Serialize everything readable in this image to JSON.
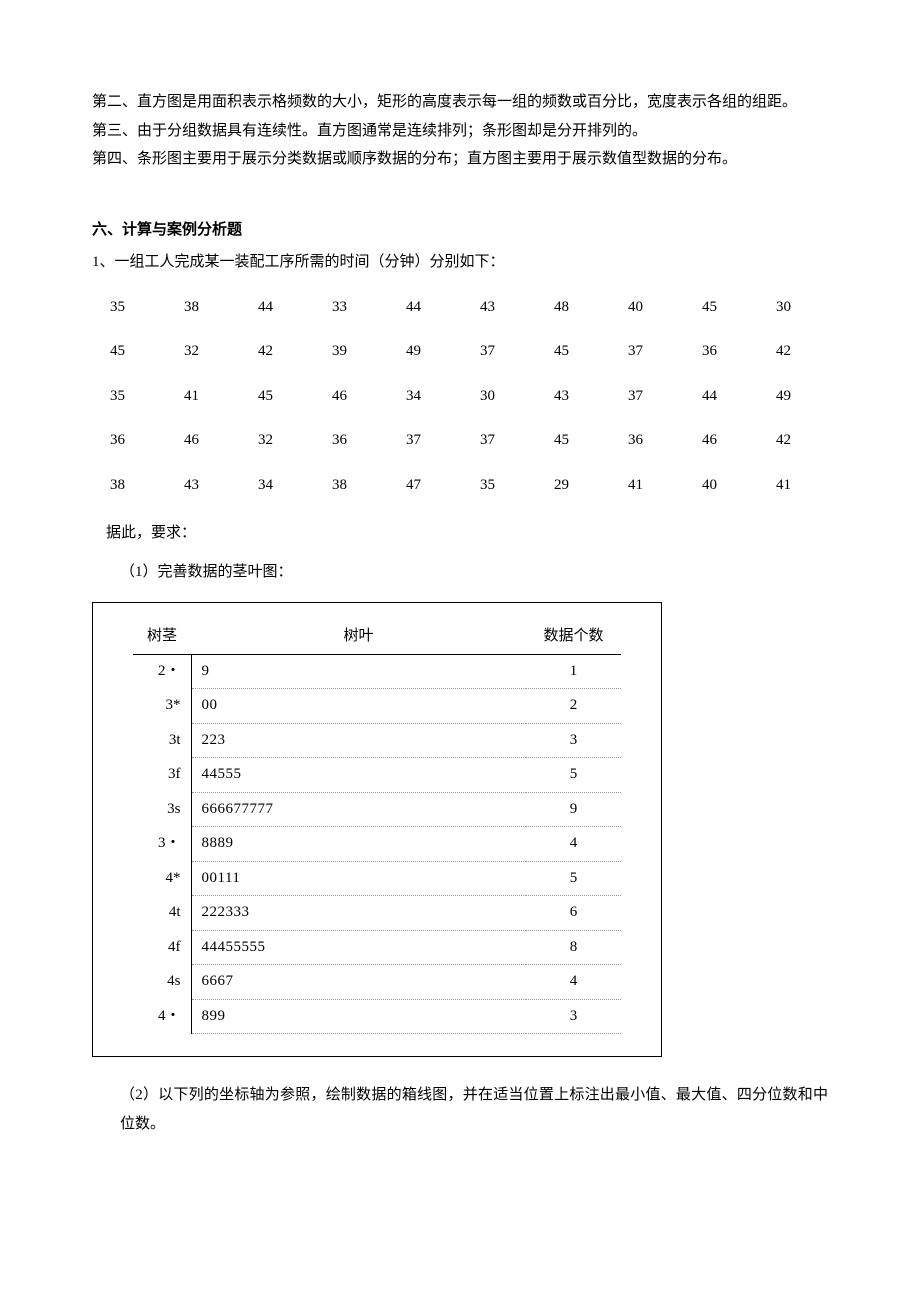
{
  "intro_paragraphs": [
    "第二、直方图是用面积表示格频数的大小，矩形的高度表示每一组的频数或百分比，宽度表示各组的组距。",
    "第三、由于分组数据具有连续性。直方图通常是连续排列；条形图却是分开排列的。",
    "第四、条形图主要用于展示分类数据或顺序数据的分布；直方图主要用于展示数值型数据的分布。"
  ],
  "section_heading": "六、计算与案例分析题",
  "q1_text": "1、一组工人完成某一装配工序所需的时间（分钟）分别如下：",
  "data_rows": [
    [
      "35",
      "38",
      "44",
      "33",
      "44",
      "43",
      "48",
      "40",
      "45",
      "30"
    ],
    [
      "45",
      "32",
      "42",
      "39",
      "49",
      "37",
      "45",
      "37",
      "36",
      "42"
    ],
    [
      "35",
      "41",
      "45",
      "46",
      "34",
      "30",
      "43",
      "37",
      "44",
      "49"
    ],
    [
      "36",
      "46",
      "32",
      "36",
      "37",
      "37",
      "45",
      "36",
      "46",
      "42"
    ],
    [
      "38",
      "43",
      "34",
      "38",
      "47",
      "35",
      "29",
      "41",
      "40",
      "41"
    ]
  ],
  "post_data": "据此，要求：",
  "sub1": "（1）完善数据的茎叶图：",
  "stem_headers": {
    "stem": "树茎",
    "leaf": "树叶",
    "count": "数据个数"
  },
  "stem_rows": [
    {
      "stem": "2・",
      "leaf": "9",
      "count": "1"
    },
    {
      "stem": "3*",
      "leaf": "00",
      "count": "2"
    },
    {
      "stem": "3t",
      "leaf": "223",
      "count": "3"
    },
    {
      "stem": "3f",
      "leaf": "44555",
      "count": "5"
    },
    {
      "stem": "3s",
      "leaf": "666677777",
      "count": "9"
    },
    {
      "stem": "3・",
      "leaf": "8889",
      "count": "4"
    },
    {
      "stem": "4*",
      "leaf": "00111",
      "count": "5"
    },
    {
      "stem": "4t",
      "leaf": "222333",
      "count": "6"
    },
    {
      "stem": "4f",
      "leaf": "44455555",
      "count": "8"
    },
    {
      "stem": "4s",
      "leaf": "6667",
      "count": "4"
    },
    {
      "stem": "4・",
      "leaf": "899",
      "count": "3"
    }
  ],
  "sub2": "（2）以下列的坐标轴为参照，绘制数据的箱线图，并在适当位置上标注出最小值、最大值、四分位数和中位数。"
}
